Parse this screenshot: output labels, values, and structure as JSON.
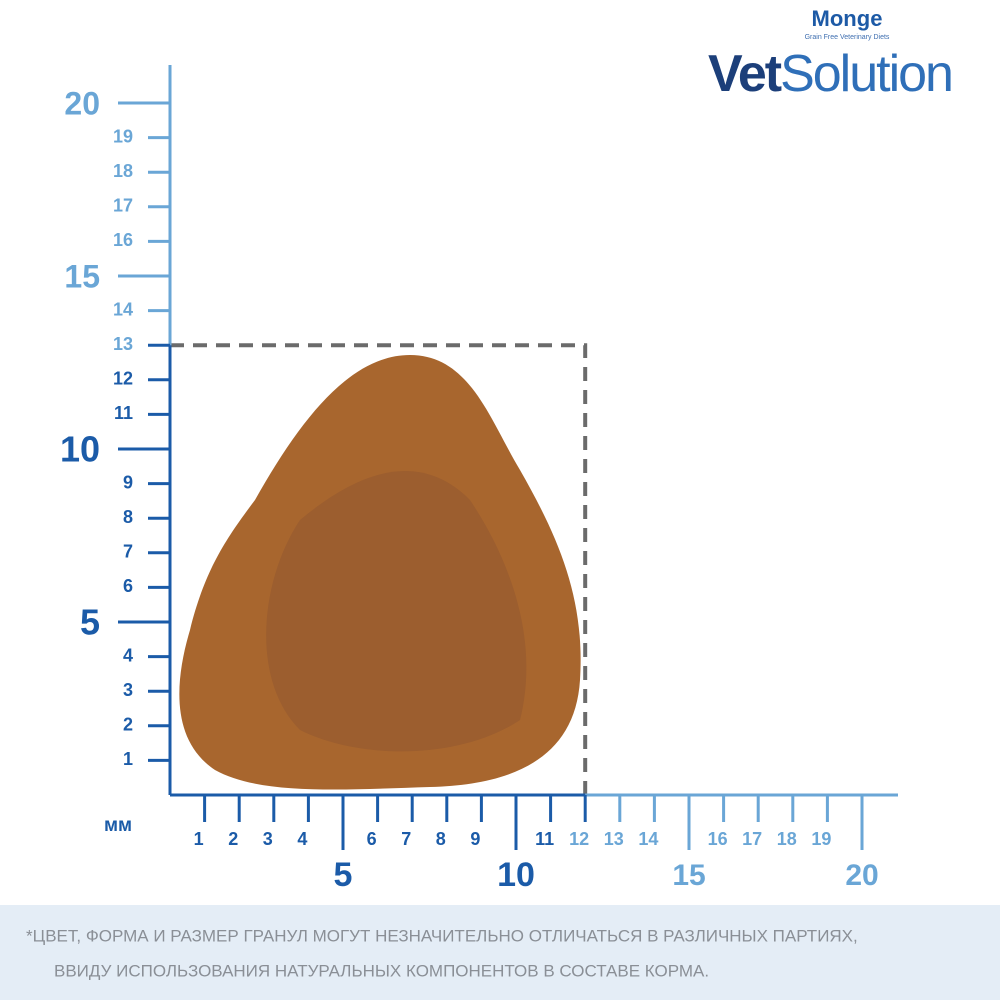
{
  "brand": {
    "name": "Monge",
    "tagline": "Grain Free Veterinary Diets",
    "line_bold": "Vet",
    "line_light": "Solution"
  },
  "ruler": {
    "unit": "мм",
    "y_minor": [
      1,
      2,
      3,
      4,
      6,
      7,
      8,
      9,
      11,
      12,
      13,
      14,
      16,
      17,
      18,
      19
    ],
    "y_major": [
      5,
      10,
      15,
      20
    ],
    "x_minor": [
      1,
      2,
      3,
      4,
      6,
      7,
      8,
      9,
      11,
      12,
      13,
      14,
      16,
      17,
      18,
      19
    ],
    "x_major": [
      5,
      10,
      15,
      20
    ],
    "kibble_size": {
      "width": 12,
      "height": 13
    },
    "colors": {
      "dark": "#1b5ba8",
      "light": "#6aa6d6",
      "box": "#6b6b6b"
    }
  },
  "footnote": {
    "line1": "*ЦВЕТ, ФОРМА И РАЗМЕР ГРАНУЛ МОГУТ НЕЗНАЧИТЕЛЬНО ОТЛИЧАТЬСЯ В РАЗЛИЧНЫХ ПАРТИЯХ,",
    "line2": "ВВИДУ ИСПОЛЬЗОВАНИЯ НАТУРАЛЬНЫХ КОМПОНЕНТОВ В СОСТАВЕ КОРМА."
  }
}
